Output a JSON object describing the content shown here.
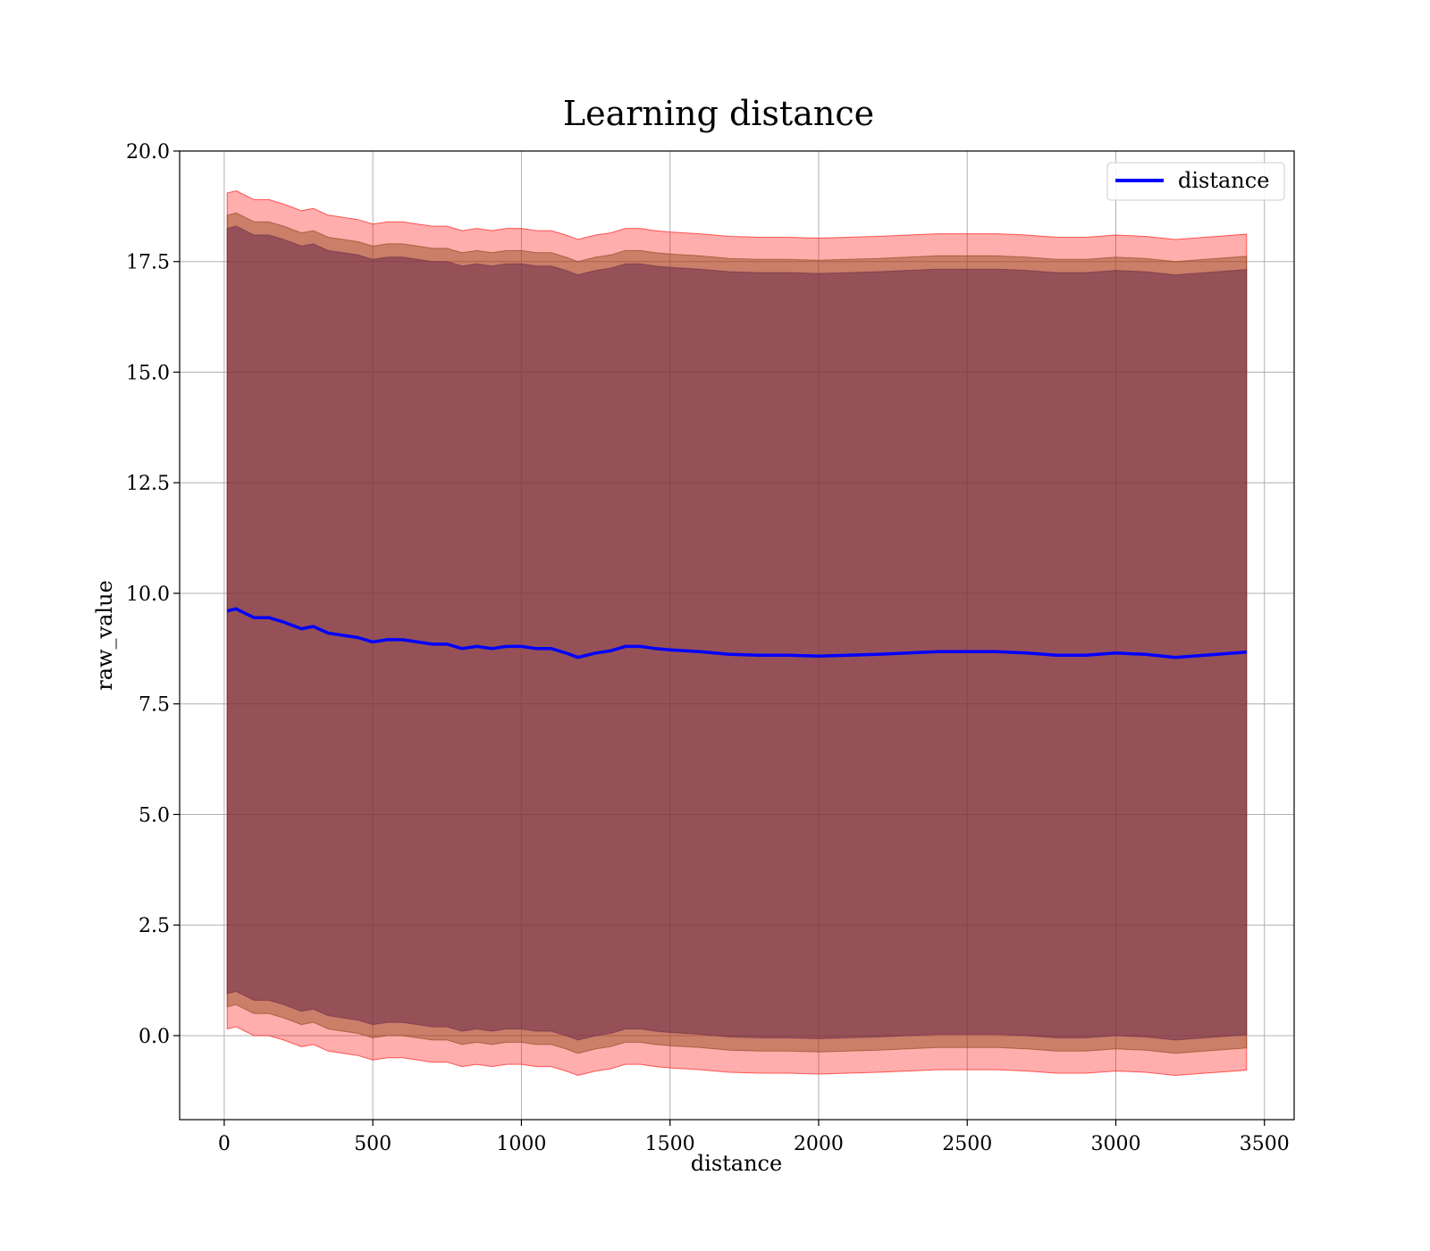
{
  "chart_data": {
    "type": "line",
    "title": "Learning distance",
    "xlabel": "distance",
    "ylabel": "raw_value",
    "xlim": [
      -150,
      3600
    ],
    "ylim": [
      -1.9,
      20.0
    ],
    "xticks": [
      0,
      500,
      1000,
      1500,
      2000,
      2500,
      3000,
      3500
    ],
    "yticks": [
      0.0,
      2.5,
      5.0,
      7.5,
      10.0,
      12.5,
      15.0,
      17.5,
      20.0
    ],
    "grid": true,
    "legend": {
      "position": "top-right",
      "entries": [
        "distance"
      ]
    },
    "colors": {
      "line": "#0000ff",
      "band_outer": "#ff0000",
      "band_mid": "#8b4513",
      "band_inner": "#6b2c4a"
    },
    "x": [
      10,
      40,
      70,
      100,
      150,
      200,
      260,
      300,
      350,
      400,
      450,
      500,
      550,
      600,
      650,
      700,
      750,
      800,
      850,
      900,
      950,
      1000,
      1050,
      1100,
      1150,
      1190,
      1250,
      1300,
      1350,
      1400,
      1450,
      1500,
      1600,
      1700,
      1800,
      1900,
      2000,
      2100,
      2200,
      2300,
      2400,
      2500,
      2600,
      2700,
      2800,
      2900,
      3000,
      3100,
      3200,
      3300,
      3440
    ],
    "series": [
      {
        "name": "distance",
        "values": [
          9.6,
          9.65,
          9.55,
          9.45,
          9.45,
          9.35,
          9.2,
          9.25,
          9.1,
          9.05,
          9.0,
          8.9,
          8.95,
          8.95,
          8.9,
          8.85,
          8.85,
          8.75,
          8.8,
          8.75,
          8.8,
          8.8,
          8.75,
          8.75,
          8.65,
          8.55,
          8.65,
          8.7,
          8.8,
          8.8,
          8.75,
          8.72,
          8.68,
          8.62,
          8.6,
          8.6,
          8.58,
          8.6,
          8.62,
          8.65,
          8.68,
          8.68,
          8.68,
          8.65,
          8.6,
          8.6,
          8.65,
          8.62,
          8.55,
          8.6,
          8.67
        ]
      }
    ],
    "bands": [
      {
        "offset": 9.45
      },
      {
        "offset": 8.95
      },
      {
        "offset": 8.65
      }
    ]
  }
}
